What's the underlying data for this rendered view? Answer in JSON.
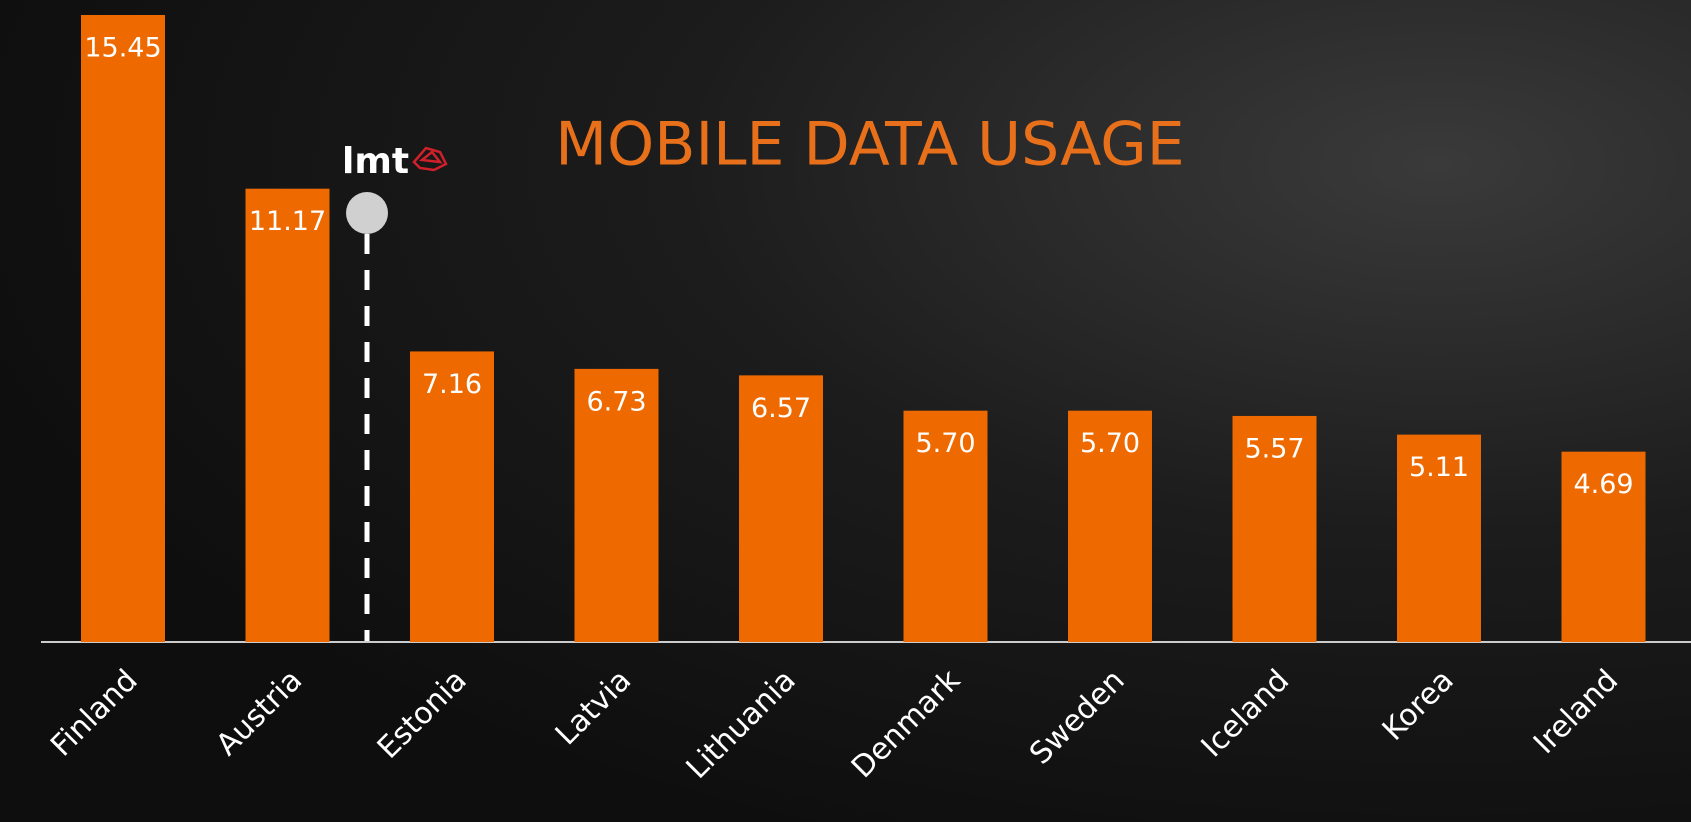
{
  "chart_data": {
    "type": "bar",
    "title": "MOBILE DATA USAGE",
    "logo": "lmt",
    "categories": [
      "Finland",
      "Austria",
      "Estonia",
      "Latvia",
      "Lithuania",
      "Denmark",
      "Sweden",
      "Iceland",
      "Korea",
      "Ireland"
    ],
    "values": [
      15.45,
      11.17,
      7.16,
      6.73,
      6.57,
      5.7,
      5.7,
      5.57,
      5.11,
      4.69
    ],
    "value_labels": [
      "15.45",
      "11.17",
      "7.16",
      "6.73",
      "6.57",
      "5.70",
      "5.70",
      "5.57",
      "5.11",
      "4.69"
    ],
    "color": "#ee6a00"
  }
}
